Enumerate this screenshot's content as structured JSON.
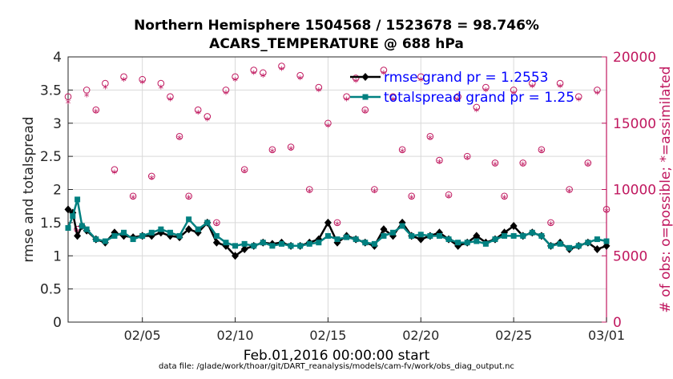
{
  "chart_data": {
    "type": "line",
    "title": "Northern Hemisphere 1504568 / 1523678 = 98.746%",
    "subtitle": "ACARS_TEMPERATURE @ 688 hPa",
    "xlabel": "Feb.01,2016 00:00:00 start",
    "ylabel": "rmse and totalspread",
    "y2label": "# of obs: o=possible; *=assimilated",
    "footer": "data file: /glade/work/thoar/git/DART_reanalysis/models/cam-fv/work/obs_diag_output.nc",
    "xticks": [
      "02/05",
      "02/10",
      "02/15",
      "02/20",
      "02/25",
      "03/01"
    ],
    "xtick_days": [
      5,
      10,
      15,
      20,
      25,
      30
    ],
    "xlim": [
      1,
      30
    ],
    "ylim": [
      0,
      4
    ],
    "yticks": [
      "0",
      "0.5",
      "1",
      "1.5",
      "2",
      "2.5",
      "3",
      "3.5",
      "4"
    ],
    "y2lim": [
      0,
      20000
    ],
    "y2ticks": [
      "0",
      "5000",
      "10000",
      "15000",
      "20000"
    ],
    "grid": true,
    "legend_location": "top-right",
    "legend": [
      "rmse grand pr = 1.2553",
      "totalspread grand pr = 1.25"
    ],
    "colors": {
      "rmse": "#000000",
      "totalspread": "#008080",
      "obs": "#c0185f",
      "legend_text": "#0000ff",
      "y2axis": "#c0185f",
      "grid": "#d9d9d9"
    },
    "series": [
      {
        "name": "rmse grand pr = 1.2553",
        "x": [
          1.0,
          1.25,
          1.5,
          1.75,
          2.0,
          2.5,
          3.0,
          3.5,
          4.0,
          4.5,
          5.0,
          5.5,
          6.0,
          6.5,
          7.0,
          7.5,
          8.0,
          8.5,
          9.0,
          9.5,
          10.0,
          10.5,
          11.0,
          11.5,
          12.0,
          12.5,
          13.0,
          13.5,
          14.0,
          14.5,
          15.0,
          15.5,
          16.0,
          16.5,
          17.0,
          17.5,
          18.0,
          18.5,
          19.0,
          19.5,
          20.0,
          20.5,
          21.0,
          21.5,
          22.0,
          22.5,
          23.0,
          23.5,
          24.0,
          24.5,
          25.0,
          25.5,
          26.0,
          26.5,
          27.0,
          27.5,
          28.0,
          28.5,
          29.0,
          29.5,
          30.0
        ],
        "values": [
          1.7,
          1.65,
          1.3,
          1.45,
          1.38,
          1.25,
          1.2,
          1.35,
          1.3,
          1.28,
          1.3,
          1.3,
          1.35,
          1.3,
          1.28,
          1.4,
          1.35,
          1.5,
          1.2,
          1.15,
          1.0,
          1.1,
          1.15,
          1.2,
          1.18,
          1.2,
          1.15,
          1.15,
          1.2,
          1.25,
          1.5,
          1.2,
          1.3,
          1.25,
          1.2,
          1.15,
          1.4,
          1.3,
          1.5,
          1.3,
          1.25,
          1.3,
          1.35,
          1.25,
          1.15,
          1.2,
          1.3,
          1.2,
          1.25,
          1.35,
          1.45,
          1.3,
          1.35,
          1.3,
          1.15,
          1.2,
          1.1,
          1.15,
          1.2,
          1.1,
          1.15
        ]
      },
      {
        "name": "totalspread grand pr = 1.25",
        "x": [
          1.0,
          1.25,
          1.5,
          1.75,
          2.0,
          2.5,
          3.0,
          3.5,
          4.0,
          4.5,
          5.0,
          5.5,
          6.0,
          6.5,
          7.0,
          7.5,
          8.0,
          8.5,
          9.0,
          9.5,
          10.0,
          10.5,
          11.0,
          11.5,
          12.0,
          12.5,
          13.0,
          13.5,
          14.0,
          14.5,
          15.0,
          15.5,
          16.0,
          16.5,
          17.0,
          17.5,
          18.0,
          18.5,
          19.0,
          19.5,
          20.0,
          20.5,
          21.0,
          21.5,
          22.0,
          22.5,
          23.0,
          23.5,
          24.0,
          24.5,
          25.0,
          25.5,
          26.0,
          26.5,
          27.0,
          27.5,
          28.0,
          28.5,
          29.0,
          29.5,
          30.0
        ],
        "values": [
          1.42,
          1.6,
          1.85,
          1.45,
          1.4,
          1.25,
          1.22,
          1.3,
          1.35,
          1.25,
          1.3,
          1.35,
          1.4,
          1.35,
          1.3,
          1.55,
          1.4,
          1.5,
          1.3,
          1.2,
          1.15,
          1.18,
          1.15,
          1.2,
          1.15,
          1.18,
          1.15,
          1.15,
          1.18,
          1.2,
          1.3,
          1.25,
          1.28,
          1.25,
          1.2,
          1.18,
          1.3,
          1.35,
          1.45,
          1.3,
          1.32,
          1.3,
          1.3,
          1.25,
          1.2,
          1.2,
          1.22,
          1.18,
          1.25,
          1.3,
          1.3,
          1.3,
          1.35,
          1.3,
          1.15,
          1.18,
          1.12,
          1.15,
          1.2,
          1.25,
          1.22
        ]
      },
      {
        "name": "# of obs possible",
        "marker": "o",
        "x": [
          1.0,
          1.5,
          2.0,
          2.5,
          3.0,
          3.5,
          4.0,
          4.5,
          5.0,
          5.5,
          6.0,
          6.5,
          7.0,
          7.5,
          8.0,
          8.5,
          9.0,
          9.5,
          10.0,
          10.5,
          11.0,
          11.5,
          12.0,
          12.5,
          13.0,
          13.5,
          14.0,
          14.5,
          15.0,
          15.5,
          16.0,
          16.5,
          17.0,
          17.5,
          18.0,
          18.5,
          19.0,
          19.5,
          20.0,
          20.5,
          21.0,
          21.5,
          22.0,
          22.5,
          23.0,
          23.5,
          24.0,
          24.5,
          25.0,
          25.5,
          26.0,
          26.5,
          27.0,
          27.5,
          28.0,
          28.5,
          29.0,
          29.5,
          30.0
        ],
        "values": [
          17000,
          7000,
          17500,
          16000,
          18000,
          11500,
          18500,
          9500,
          18300,
          11000,
          18000,
          17000,
          14000,
          9500,
          16000,
          15500,
          7500,
          17500,
          18500,
          11500,
          19000,
          18800,
          13000,
          19300,
          13200,
          18600,
          10000,
          17700,
          15000,
          7500,
          17000,
          18400,
          16000,
          10000,
          19000,
          17000,
          13000,
          9500,
          18500,
          14000,
          12200,
          9600,
          17000,
          12500,
          16200,
          17700,
          12000,
          9500,
          17500,
          12000,
          18000,
          13000,
          7500,
          18000,
          10000,
          17000,
          12000,
          17500,
          8500
        ]
      },
      {
        "name": "# of obs assimilated",
        "marker": "*",
        "x": [
          1.0,
          1.5,
          2.0,
          2.5,
          3.0,
          3.5,
          4.0,
          4.5,
          5.0,
          5.5,
          6.0,
          6.5,
          7.0,
          7.5,
          8.0,
          8.5,
          9.0,
          9.5,
          10.0,
          10.5,
          11.0,
          11.5,
          12.0,
          12.5,
          13.0,
          13.5,
          14.0,
          14.5,
          15.0,
          15.5,
          16.0,
          16.5,
          17.0,
          17.5,
          18.0,
          18.5,
          19.0,
          19.5,
          20.0,
          20.5,
          21.0,
          21.5,
          22.0,
          22.5,
          23.0,
          23.5,
          24.0,
          24.5,
          25.0,
          25.5,
          26.0,
          26.5,
          27.0,
          27.5,
          28.0,
          28.5,
          29.0,
          29.5,
          30.0
        ],
        "values": [
          16500,
          6800,
          17000,
          15800,
          17600,
          11200,
          18200,
          9300,
          18000,
          10800,
          17600,
          16700,
          13800,
          9300,
          15700,
          15200,
          7300,
          17200,
          18200,
          11300,
          18700,
          18500,
          12800,
          19000,
          13000,
          18300,
          9800,
          17400,
          14700,
          7300,
          16700,
          18100,
          15800,
          9800,
          18700,
          16700,
          12800,
          9300,
          18200,
          13800,
          12000,
          9400,
          16700,
          12300,
          15900,
          17400,
          11800,
          9300,
          17200,
          11800,
          17700,
          12800,
          7300,
          17700,
          9800,
          16700,
          11800,
          17200,
          8300
        ]
      }
    ]
  }
}
